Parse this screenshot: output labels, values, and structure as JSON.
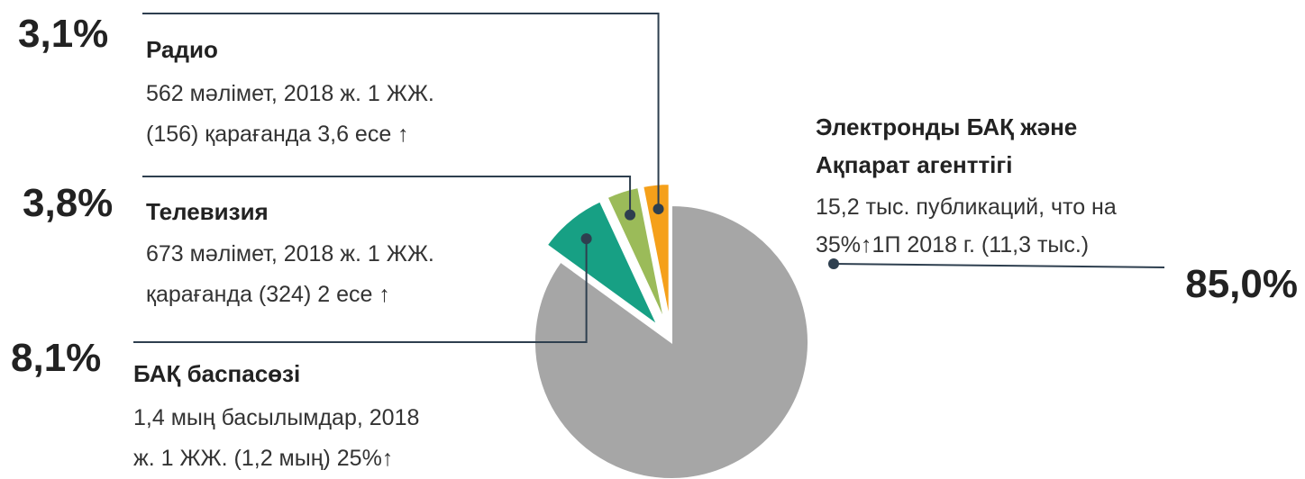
{
  "chart_data": {
    "type": "pie",
    "categories": [
      "Электронды БАҚ және Ақпарат агенттігі",
      "БАҚ баспасөзі",
      "Телевизия",
      "Радио"
    ],
    "values": [
      85.0,
      8.1,
      3.8,
      3.1
    ],
    "value_labels": [
      "85,0%",
      "8,1%",
      "3,8%",
      "3,1%"
    ],
    "colors": [
      "#a6a6a6",
      "#17a084",
      "#9bbb59",
      "#f5a01a"
    ],
    "descriptions": [
      [
        "15,2 тыс. публикаций, что на",
        "35%↑1П 2018 г. (11,3 тыс.)"
      ],
      [
        "1,4 мың басылымдар, 2018",
        "ж. 1 ЖЖ. (1,2 мың) 25%↑"
      ],
      [
        "673 мәлімет, 2018 ж. 1 ЖЖ.",
        "қарағанда (324) 2 есе ↑"
      ],
      [
        "562 мәлімет,  2018 ж. 1 ЖЖ.",
        "(156) қарағанда 3,6 есе ↑"
      ]
    ]
  }
}
